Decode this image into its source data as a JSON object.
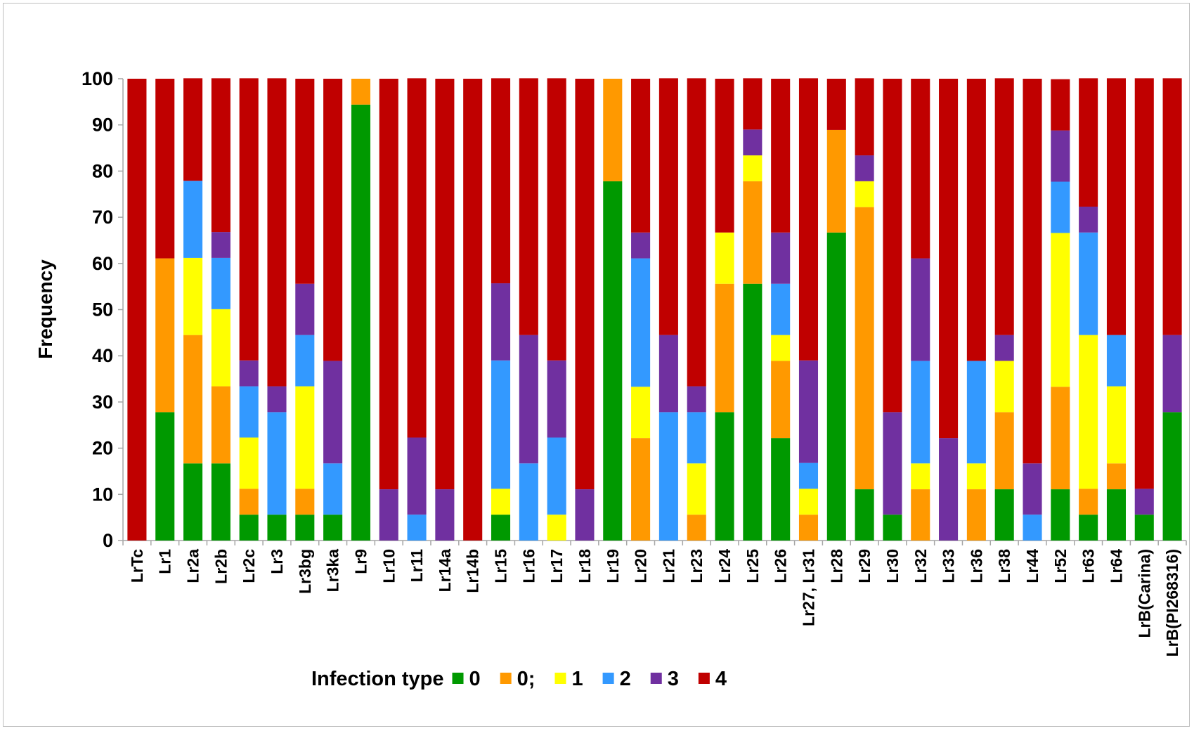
{
  "chart_data": {
    "type": "bar",
    "stacked": true,
    "title": "",
    "xlabel": "",
    "ylabel": "Frequency",
    "ylim": [
      0,
      100
    ],
    "yticks": [
      0,
      10,
      20,
      30,
      40,
      50,
      60,
      70,
      80,
      90,
      100
    ],
    "legend_position": "bottom",
    "legend_title": "Infection type",
    "categories": [
      "LrTc",
      "Lr1",
      "Lr2a",
      "Lr2b",
      "Lr2c",
      "Lr3",
      "Lr3bg",
      "Lr3ka",
      "Lr9",
      "Lr10",
      "Lr11",
      "Lr14a",
      "Lr14b",
      "Lr15",
      "Lr16",
      "Lr17",
      "Lr18",
      "Lr19",
      "Lr20",
      "Lr21",
      "Lr23",
      "Lr24",
      "Lr25",
      "Lr26",
      "Lr27, Lr31",
      "Lr28",
      "Lr29",
      "Lr30",
      "Lr32",
      "Lr33",
      "Lr36",
      "Lr38",
      "Lr44",
      "Lr52",
      "Lr63",
      "Lr64",
      "LrB(Carina)",
      "LrB(PI268316)"
    ],
    "series": [
      {
        "name": "0",
        "color": "#009900",
        "values": [
          0,
          27.8,
          16.7,
          16.7,
          5.6,
          5.6,
          5.6,
          5.6,
          94.4,
          0,
          0,
          0,
          0,
          5.6,
          0,
          0,
          0,
          77.8,
          0,
          0,
          0,
          27.8,
          55.6,
          22.2,
          0,
          66.7,
          11.1,
          5.6,
          0,
          0,
          0,
          11.1,
          0,
          11.1,
          5.6,
          11.1,
          5.6,
          27.8
        ]
      },
      {
        "name": "0;",
        "color": "#ff9900",
        "values": [
          0,
          33.3,
          27.8,
          16.7,
          5.6,
          0,
          5.6,
          0,
          5.6,
          0,
          0,
          0,
          0,
          0,
          0,
          0,
          0,
          22.2,
          22.2,
          0,
          5.6,
          27.8,
          22.2,
          16.7,
          5.6,
          22.2,
          61.1,
          0,
          11.1,
          0,
          11.1,
          16.7,
          0,
          22.2,
          5.6,
          5.6,
          0,
          0
        ]
      },
      {
        "name": "1",
        "color": "#ffff00",
        "values": [
          0,
          0,
          16.7,
          16.7,
          11.1,
          0,
          22.2,
          0,
          0,
          0,
          0,
          0,
          0,
          5.6,
          0,
          5.6,
          0,
          0,
          11.1,
          0,
          11.1,
          11.1,
          5.6,
          5.6,
          5.6,
          0,
          5.6,
          0,
          5.6,
          0,
          5.6,
          11.1,
          0,
          33.3,
          33.3,
          16.7,
          0,
          0
        ]
      },
      {
        "name": "2",
        "color": "#3399ff",
        "values": [
          0,
          0,
          16.7,
          11.1,
          11.1,
          22.2,
          11.1,
          11.1,
          0,
          0,
          5.6,
          0,
          0,
          27.8,
          16.7,
          16.7,
          0,
          0,
          27.8,
          27.8,
          11.1,
          0,
          0,
          11.1,
          5.6,
          0,
          0,
          0,
          22.2,
          0,
          22.2,
          0,
          5.6,
          11.1,
          22.2,
          11.1,
          0,
          0
        ]
      },
      {
        "name": "3",
        "color": "#7030a0",
        "values": [
          0,
          0,
          0,
          5.6,
          5.6,
          5.6,
          11.1,
          22.2,
          0,
          11.1,
          16.7,
          11.1,
          0,
          16.7,
          27.8,
          16.7,
          11.1,
          0,
          5.6,
          16.7,
          5.6,
          0,
          5.6,
          11.1,
          22.2,
          0,
          5.6,
          22.2,
          22.2,
          22.2,
          0,
          5.6,
          11.1,
          11.1,
          5.6,
          0,
          5.6,
          16.7
        ]
      },
      {
        "name": "4",
        "color": "#c00000",
        "values": [
          100,
          38.9,
          22.2,
          33.3,
          61.1,
          66.7,
          44.4,
          61.1,
          0,
          88.9,
          77.8,
          88.9,
          100,
          44.4,
          55.6,
          61.1,
          88.9,
          0,
          33.3,
          55.6,
          66.7,
          33.3,
          11.1,
          33.3,
          61.1,
          11.1,
          16.7,
          72.2,
          38.9,
          77.8,
          61.1,
          55.6,
          83.3,
          11.1,
          27.8,
          55.6,
          88.9,
          55.6
        ]
      }
    ]
  }
}
